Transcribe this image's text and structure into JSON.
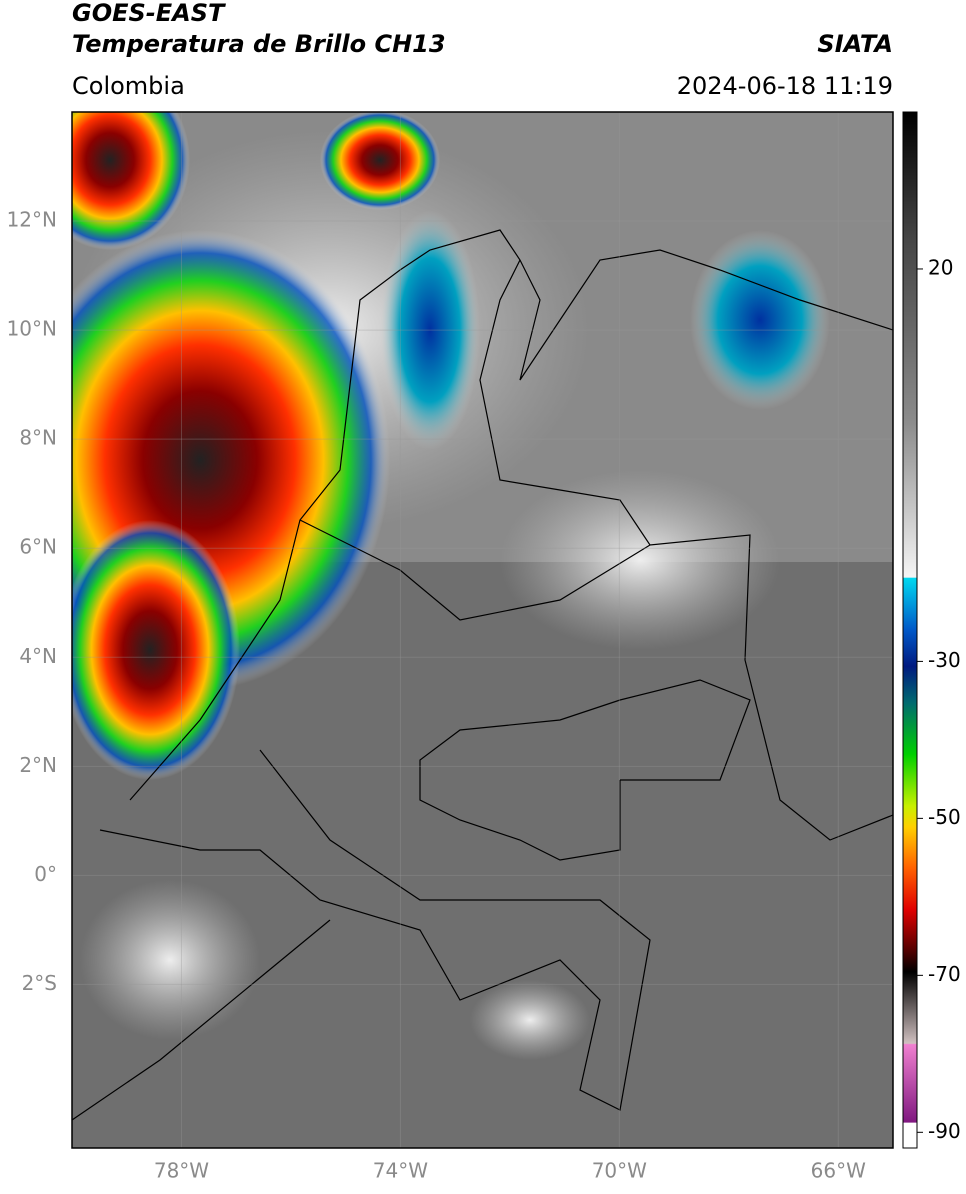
{
  "header": {
    "title_line1": "GOES-EAST",
    "title_line2": "Temperatura de Brillo CH13",
    "source": "SIATA",
    "region": "Colombia",
    "datetime": "2024-06-18 11:19"
  },
  "map": {
    "xlim": [
      -80,
      -65
    ],
    "ylim": [
      -5,
      14
    ],
    "xticks": [
      {
        "value": -78,
        "label": "78°W"
      },
      {
        "value": -74,
        "label": "74°W"
      },
      {
        "value": -70,
        "label": "70°W"
      },
      {
        "value": -66,
        "label": "66°W"
      }
    ],
    "yticks": [
      {
        "value": 12,
        "label": "12°N"
      },
      {
        "value": 10,
        "label": "10°N"
      },
      {
        "value": 8,
        "label": "8°N"
      },
      {
        "value": 6,
        "label": "6°N"
      },
      {
        "value": 4,
        "label": "4°N"
      },
      {
        "value": 2,
        "label": "2°N"
      },
      {
        "value": 0,
        "label": "0°"
      },
      {
        "value": -2,
        "label": "2°S"
      }
    ],
    "grid": true
  },
  "colorbar": {
    "lim": [
      -92,
      40
    ],
    "ticks": [
      20,
      -30,
      -50,
      -70,
      -90
    ]
  }
}
